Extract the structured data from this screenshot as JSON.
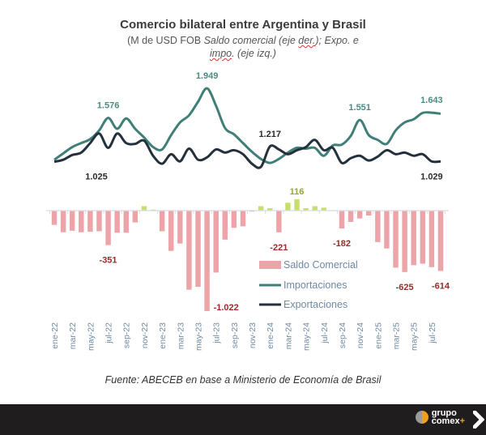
{
  "header": {
    "title": "Comercio bilateral entre Argentina y Brasil",
    "subtitle_part1": "(M de USD FOB ",
    "subtitle_italic1": "Saldo comercial (eje ",
    "subtitle_squig1": "der.",
    "subtitle_italic2": "); Expo. e ",
    "subtitle_squig2": "impo",
    "subtitle_italic3": ". (eje izq.)"
  },
  "source": "Fuente: ABECEB en base a Ministerio de Economía de Brasil",
  "footer": {
    "logo_line1": "grupo",
    "logo_line2": "comex",
    "logo_plus": "+"
  },
  "chart_data": {
    "type": "line+bar",
    "title": "Comercio bilateral entre Argentina y Brasil",
    "xlabel": "",
    "ylabel_left": "Expo. e impo. (M de USD FOB)",
    "ylabel_right": "Saldo comercial (M de USD FOB)",
    "legend_position": "center-right",
    "grid": false,
    "colors": {
      "saldo_negative": "#eca4a8",
      "saldo_positive": "#c6e06a",
      "importaciones": "#3f7f78",
      "exportaciones": "#24303c",
      "label_import": "#4a8c84",
      "label_export": "#2a2a2a",
      "label_negative": "#9b2a2a",
      "label_positive": "#93a83a",
      "tick": "#6f8aa3"
    },
    "x": [
      "ene-22",
      "feb-22",
      "mar-22",
      "abr-22",
      "may-22",
      "jun-22",
      "jul-22",
      "ago-22",
      "sep-22",
      "oct-22",
      "nov-22",
      "dic-22",
      "ene-23",
      "feb-23",
      "mar-23",
      "abr-23",
      "may-23",
      "jun-23",
      "jul-23",
      "ago-23",
      "sep-23",
      "oct-23",
      "nov-23",
      "dic-23",
      "ene-24",
      "feb-24",
      "mar-24",
      "abr-24",
      "may-24",
      "jun-24",
      "jul-24",
      "ago-24",
      "sep-24",
      "oct-24",
      "nov-24",
      "dic-24",
      "ene-25",
      "feb-25",
      "mar-25",
      "abr-25",
      "may-25",
      "jun-25",
      "jul-25",
      "ago-25"
    ],
    "tick_labels": [
      "ene-22",
      "mar-22",
      "may-22",
      "jul-22",
      "sep-22",
      "nov-22",
      "ene-23",
      "mar-23",
      "may-23",
      "jul-23",
      "sep-23",
      "nov-23",
      "ene-24",
      "mar-24",
      "may-24",
      "jul-24",
      "sep-24",
      "nov-24",
      "ene-25",
      "mar-25",
      "may-25",
      "jul-25"
    ],
    "series": [
      {
        "name": "Importaciones",
        "type": "line",
        "axis": "left",
        "values": [
          1050,
          1130,
          1210,
          1260,
          1310,
          1420,
          1576,
          1440,
          1570,
          1440,
          1330,
          1210,
          1180,
          1360,
          1520,
          1610,
          1780,
          1949,
          1730,
          1450,
          1370,
          1260,
          1150,
          1060,
          1010,
          1060,
          1140,
          1200,
          1190,
          1200,
          1100,
          1230,
          1240,
          1350,
          1551,
          1360,
          1300,
          1250,
          1420,
          1520,
          1560,
          1640,
          1643,
          1630
        ],
        "labels": [
          {
            "index": 6,
            "text": "1.576"
          },
          {
            "index": 17,
            "text": "1.949"
          },
          {
            "index": 34,
            "text": "1.551"
          },
          {
            "index": 42,
            "text": "1.643"
          }
        ]
      },
      {
        "name": "Exportaciones",
        "type": "line",
        "axis": "left",
        "values": [
          1025,
          1050,
          1110,
          1140,
          1260,
          1380,
          1200,
          1380,
          1260,
          1250,
          1290,
          1100,
          1000,
          1120,
          1030,
          1190,
          1050,
          1080,
          1180,
          1140,
          1170,
          1120,
          1000,
          960,
          1217,
          1180,
          1120,
          1170,
          1210,
          1300,
          1170,
          1200,
          1010,
          1070,
          1100,
          1040,
          1090,
          1170,
          1120,
          1140,
          1100,
          1120,
          1029,
          1029
        ],
        "labels": [
          {
            "index": 0,
            "text": "1.025"
          },
          {
            "index": 24,
            "text": "1.217"
          },
          {
            "index": 42,
            "text": "1.029"
          }
        ]
      },
      {
        "name": "Saldo Comercial",
        "type": "bar",
        "axis": "right",
        "values": [
          -145,
          -220,
          -205,
          -220,
          -215,
          -210,
          -351,
          -225,
          -225,
          -120,
          45,
          10,
          -210,
          -410,
          -335,
          -805,
          -775,
          -1022,
          -630,
          -295,
          -175,
          -160,
          -10,
          45,
          25,
          -221,
          80,
          116,
          25,
          45,
          30,
          5,
          -182,
          -115,
          -80,
          -50,
          -320,
          -385,
          -580,
          -625,
          -555,
          -540,
          -575,
          -614
        ],
        "labels": [
          {
            "index": 6,
            "text": "-351"
          },
          {
            "index": 17,
            "text": "-1.022"
          },
          {
            "index": 25,
            "text": "-221"
          },
          {
            "index": 27,
            "text": "116"
          },
          {
            "index": 32,
            "text": "-182"
          },
          {
            "index": 39,
            "text": "-625"
          },
          {
            "index": 43,
            "text": "-614"
          }
        ]
      }
    ],
    "legend": [
      "Saldo Comercial",
      "Importaciones",
      "Exportaciones"
    ]
  }
}
